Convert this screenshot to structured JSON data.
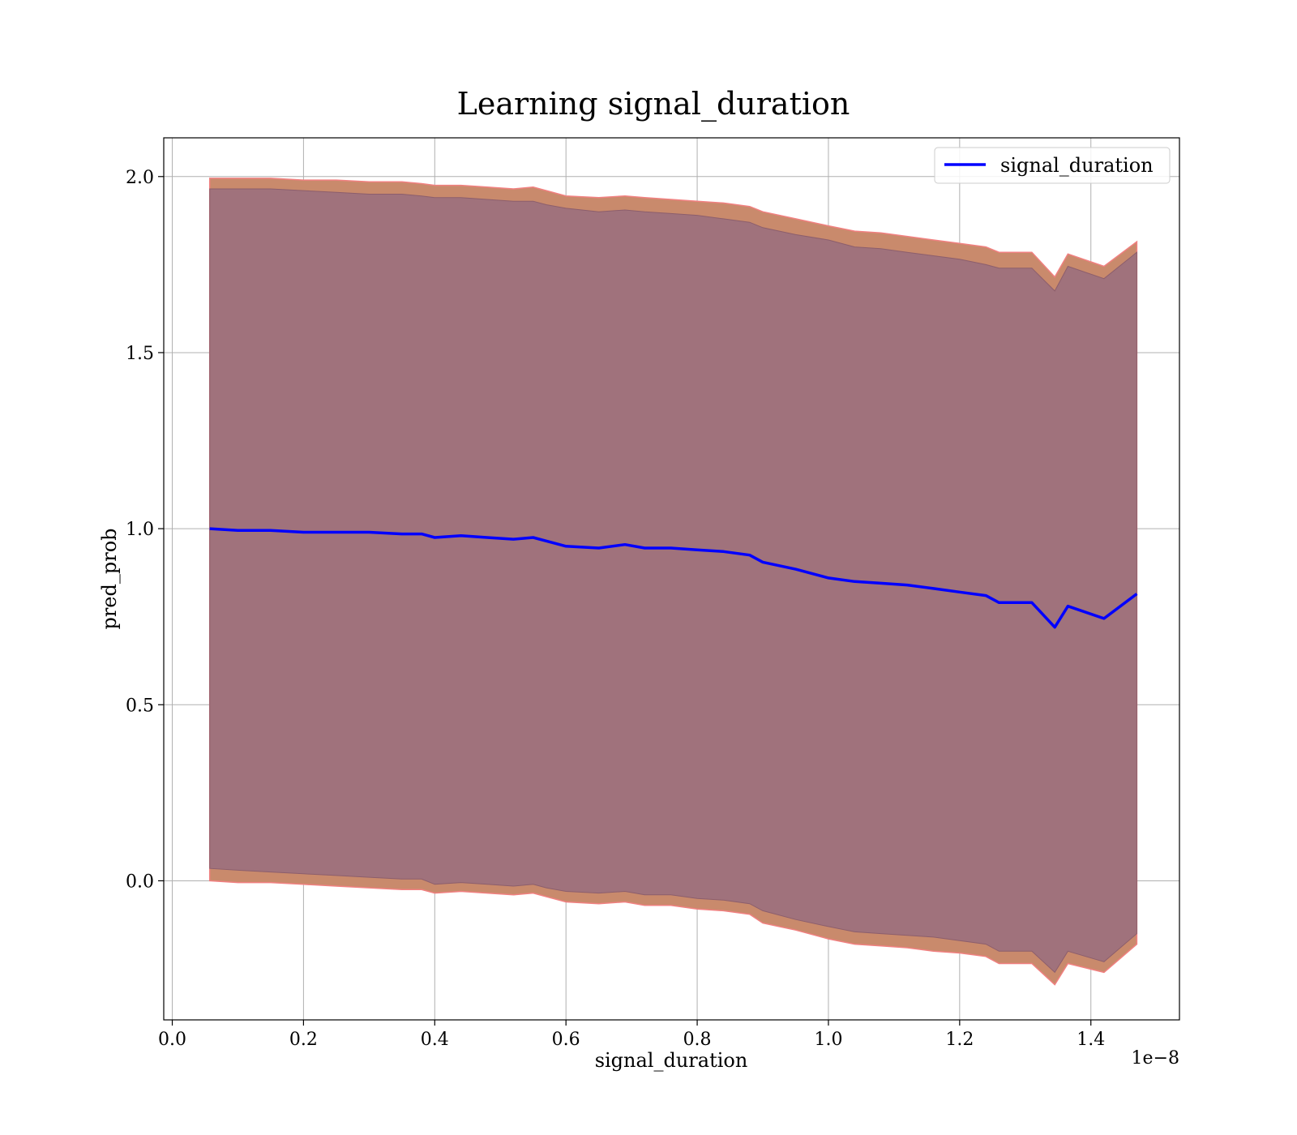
{
  "chart_data": {
    "type": "line",
    "title": "Learning signal_duration",
    "xlabel": "signal_duration",
    "ylabel": "pred_prob",
    "x_offset_label": "1e−8",
    "xlim": [
      -0.013,
      1.535
    ],
    "ylim": [
      -0.395,
      2.11
    ],
    "x_ticks": [
      0.0,
      0.2,
      0.4,
      0.6,
      0.8,
      1.0,
      1.2,
      1.4
    ],
    "x_tick_labels": [
      "0.0",
      "0.2",
      "0.4",
      "0.6",
      "0.8",
      "1.0",
      "1.2",
      "1.4"
    ],
    "y_ticks": [
      0.0,
      0.5,
      1.0,
      1.5,
      2.0
    ],
    "y_tick_labels": [
      "0.0",
      "0.5",
      "1.0",
      "1.5",
      "2.0"
    ],
    "grid": true,
    "legend": {
      "position": "top-right",
      "entries": [
        "signal_duration"
      ]
    },
    "colors": {
      "line": "#0000ff",
      "band_outer": "#c98a6c",
      "band_outer_edge": "#f08080",
      "band_inner": "#a0727c"
    },
    "x": [
      0.057,
      0.1,
      0.15,
      0.2,
      0.25,
      0.3,
      0.35,
      0.38,
      0.4,
      0.44,
      0.48,
      0.52,
      0.55,
      0.57,
      0.6,
      0.65,
      0.69,
      0.72,
      0.76,
      0.8,
      0.84,
      0.88,
      0.9,
      0.95,
      1.0,
      1.04,
      1.08,
      1.12,
      1.16,
      1.2,
      1.24,
      1.26,
      1.31,
      1.345,
      1.365,
      1.42,
      1.47
    ],
    "series": [
      {
        "name": "signal_duration",
        "values": [
          1.0,
          0.995,
          0.995,
          0.99,
          0.99,
          0.99,
          0.985,
          0.985,
          0.975,
          0.98,
          0.975,
          0.97,
          0.975,
          0.965,
          0.95,
          0.945,
          0.955,
          0.945,
          0.945,
          0.94,
          0.935,
          0.925,
          0.905,
          0.885,
          0.86,
          0.85,
          0.845,
          0.84,
          0.83,
          0.82,
          0.81,
          0.79,
          0.79,
          0.72,
          0.78,
          0.745,
          0.815
        ]
      }
    ],
    "band_outer_upper": [
      1.995,
      1.995,
      1.995,
      1.99,
      1.99,
      1.985,
      1.985,
      1.98,
      1.975,
      1.975,
      1.97,
      1.965,
      1.97,
      1.96,
      1.945,
      1.94,
      1.945,
      1.94,
      1.935,
      1.93,
      1.925,
      1.915,
      1.9,
      1.88,
      1.86,
      1.845,
      1.84,
      1.83,
      1.82,
      1.81,
      1.8,
      1.785,
      1.785,
      1.715,
      1.78,
      1.745,
      1.815
    ],
    "band_inner_upper": [
      1.965,
      1.965,
      1.965,
      1.96,
      1.955,
      1.95,
      1.95,
      1.945,
      1.94,
      1.94,
      1.935,
      1.93,
      1.93,
      1.92,
      1.91,
      1.9,
      1.905,
      1.9,
      1.895,
      1.89,
      1.88,
      1.87,
      1.855,
      1.835,
      1.82,
      1.8,
      1.795,
      1.785,
      1.775,
      1.765,
      1.75,
      1.74,
      1.74,
      1.675,
      1.745,
      1.71,
      1.785
    ],
    "band_inner_lower": [
      0.035,
      0.03,
      0.025,
      0.02,
      0.015,
      0.01,
      0.005,
      0.005,
      -0.01,
      -0.005,
      -0.01,
      -0.015,
      -0.01,
      -0.02,
      -0.03,
      -0.035,
      -0.03,
      -0.04,
      -0.04,
      -0.05,
      -0.055,
      -0.065,
      -0.085,
      -0.11,
      -0.13,
      -0.145,
      -0.15,
      -0.155,
      -0.16,
      -0.17,
      -0.18,
      -0.2,
      -0.2,
      -0.26,
      -0.2,
      -0.23,
      -0.15
    ],
    "band_outer_lower": [
      0.0,
      -0.005,
      -0.005,
      -0.01,
      -0.015,
      -0.02,
      -0.025,
      -0.025,
      -0.035,
      -0.03,
      -0.035,
      -0.04,
      -0.035,
      -0.045,
      -0.06,
      -0.065,
      -0.06,
      -0.07,
      -0.07,
      -0.08,
      -0.085,
      -0.095,
      -0.12,
      -0.14,
      -0.165,
      -0.18,
      -0.185,
      -0.19,
      -0.2,
      -0.205,
      -0.215,
      -0.235,
      -0.235,
      -0.295,
      -0.235,
      -0.26,
      -0.18
    ]
  }
}
